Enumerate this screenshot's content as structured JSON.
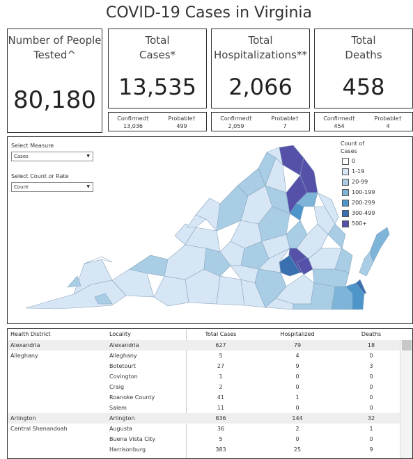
{
  "title": "COVID-19 Cases in Virginia",
  "cards": {
    "tested": {
      "label_line1": "Number of People",
      "label_line2": "Tested^",
      "value": "80,180"
    },
    "cases": {
      "label_line1": "Total",
      "label_line2": "Cases*",
      "value": "13,535",
      "confirmed_label": "Confirmed†",
      "confirmed_value": "13,036",
      "probable_label": "Probable†",
      "probable_value": "499"
    },
    "hosp": {
      "label_line1": "Total",
      "label_line2": "Hospitalizations**",
      "value": "2,066",
      "confirmed_label": "Confirmed†",
      "confirmed_value": "2,059",
      "probable_label": "Probable†",
      "probable_value": "7"
    },
    "deaths": {
      "label_line1": "Total",
      "label_line2": "Deaths",
      "value": "458",
      "confirmed_label": "Confirmed†",
      "confirmed_value": "454",
      "probable_label": "Probable†",
      "probable_value": "4"
    }
  },
  "controls": {
    "measure_label": "Select Measure",
    "measure_value": "Cases",
    "count_label": "Select Count or Rate",
    "count_value": "Count"
  },
  "legend": {
    "title_line1": "Count of",
    "title_line2": "Cases",
    "items": [
      {
        "label": "0",
        "color": "#ffffff"
      },
      {
        "label": "1-19",
        "color": "#d6e6f4"
      },
      {
        "label": "20-99",
        "color": "#a8cde5"
      },
      {
        "label": "100-199",
        "color": "#7db4d8"
      },
      {
        "label": "200-299",
        "color": "#4e95c9"
      },
      {
        "label": "300-499",
        "color": "#3a6fb0"
      },
      {
        "label": "500+",
        "color": "#5550a8"
      }
    ]
  },
  "table": {
    "headers": [
      "Health District",
      "Locality",
      "Total Cases",
      "Hospitalized",
      "Deaths"
    ],
    "rows": [
      {
        "district": "Alexandria",
        "locality": "Alexandria",
        "cases": "627",
        "hosp": "79",
        "deaths": "18"
      },
      {
        "district": "Alleghany",
        "locality": "Alleghany",
        "cases": "5",
        "hosp": "4",
        "deaths": "0"
      },
      {
        "district": "",
        "locality": "Botetourt",
        "cases": "27",
        "hosp": "9",
        "deaths": "3"
      },
      {
        "district": "",
        "locality": "Covington",
        "cases": "1",
        "hosp": "0",
        "deaths": "0"
      },
      {
        "district": "",
        "locality": "Craig",
        "cases": "2",
        "hosp": "0",
        "deaths": "0"
      },
      {
        "district": "",
        "locality": "Roanoke County",
        "cases": "41",
        "hosp": "1",
        "deaths": "0"
      },
      {
        "district": "",
        "locality": "Salem",
        "cases": "11",
        "hosp": "0",
        "deaths": "0"
      },
      {
        "district": "Arlington",
        "locality": "Arlington",
        "cases": "836",
        "hosp": "144",
        "deaths": "32"
      },
      {
        "district": "Central Shenandoah",
        "locality": "Augusta",
        "cases": "36",
        "hosp": "2",
        "deaths": "1"
      },
      {
        "district": "",
        "locality": "Buena Vista City",
        "cases": "5",
        "hosp": "0",
        "deaths": "0"
      },
      {
        "district": "",
        "locality": "Harrisonburg",
        "cases": "383",
        "hosp": "25",
        "deaths": "9"
      }
    ]
  }
}
